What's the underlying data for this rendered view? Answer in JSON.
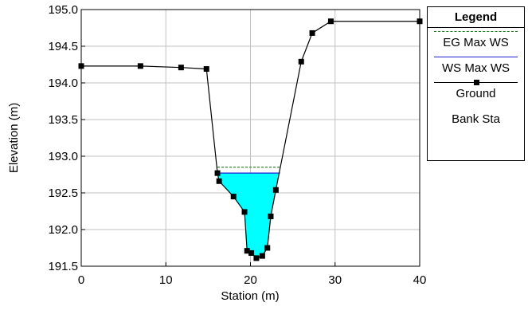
{
  "chart_data": {
    "type": "line",
    "xlabel": "Station (m)",
    "ylabel": "Elevation (m)",
    "xlim": [
      0,
      40
    ],
    "ylim": [
      191.5,
      195.0
    ],
    "xticks": [
      0,
      10,
      20,
      30,
      40
    ],
    "xtick_labels": [
      "0",
      "10",
      "20",
      "30",
      "40"
    ],
    "yticks": [
      191.5,
      192.0,
      192.5,
      193.0,
      193.5,
      194.0,
      194.5,
      195.0
    ],
    "ytick_labels": [
      "191.5",
      "192.0",
      "192.5",
      "193.0",
      "193.5",
      "194.0",
      "194.5",
      "195.0"
    ],
    "grid": true,
    "legend_position": "right",
    "legend_title": "Legend",
    "series": [
      {
        "name": "EG Max WS",
        "style": "dashed",
        "color": "#1a7a1a",
        "x": [
          16.1,
          23.5
        ],
        "y": [
          192.85,
          192.85
        ]
      },
      {
        "name": "WS Max WS",
        "style": "solid",
        "color": "#1f1fd6",
        "x": [
          16.1,
          23.5
        ],
        "y": [
          192.77,
          192.77
        ]
      },
      {
        "name": "Ground",
        "style": "solid-square-markers",
        "color": "#000000",
        "x": [
          0,
          7,
          11.8,
          14.8,
          16.1,
          16.3,
          18.0,
          19.3,
          19.6,
          20.1,
          20.7,
          21.4,
          22.0,
          22.4,
          23.0,
          26.0,
          27.3,
          29.5,
          40.0
        ],
        "y": [
          194.23,
          194.23,
          194.21,
          194.19,
          192.77,
          192.66,
          192.45,
          192.24,
          191.71,
          191.68,
          191.61,
          191.64,
          191.75,
          192.18,
          192.54,
          194.29,
          194.68,
          194.84,
          194.84
        ]
      },
      {
        "name": "Bank Sta",
        "style": "none",
        "color": "#000000",
        "x": [],
        "y": []
      }
    ],
    "fill": {
      "color": "#00ffff",
      "water_surface": 192.77
    }
  }
}
